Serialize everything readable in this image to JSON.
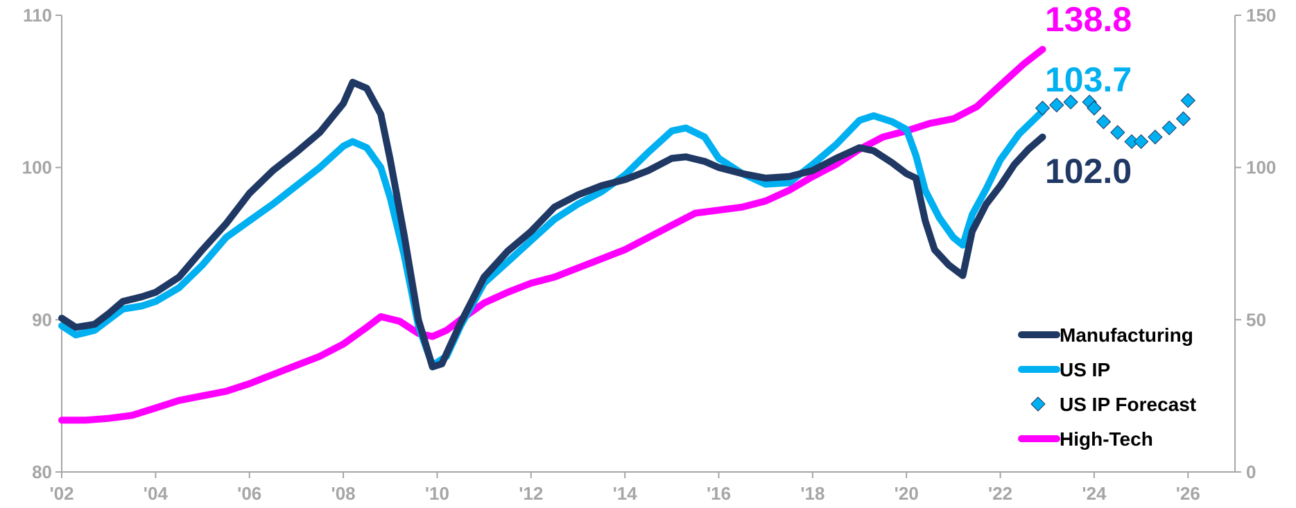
{
  "chart_data": {
    "type": "line",
    "title": "",
    "xlabel": "",
    "ylabel": "",
    "x_ticks": [
      "'02",
      "'04",
      "'06",
      "'08",
      "'10",
      "'12",
      "'14",
      "'16",
      "'18",
      "'20",
      "'22",
      "'24",
      "'26"
    ],
    "xlim": [
      2002,
      2027
    ],
    "left_axis": {
      "ylim": [
        80,
        110
      ],
      "ticks": [
        "80",
        "90",
        "100",
        "110"
      ]
    },
    "right_axis": {
      "ylim": [
        0,
        150
      ],
      "ticks": [
        "0",
        "50",
        "100",
        "150"
      ]
    },
    "grid": false,
    "legend_position": "bottom-right",
    "series": [
      {
        "name": "Manufacturing",
        "axis": "left",
        "style": "line",
        "color": "#1f3864",
        "end_label": "102.0",
        "points": [
          [
            2002.0,
            90.1
          ],
          [
            2002.3,
            89.5
          ],
          [
            2002.7,
            89.7
          ],
          [
            2003.0,
            90.4
          ],
          [
            2003.3,
            91.2
          ],
          [
            2003.7,
            91.5
          ],
          [
            2004.0,
            91.8
          ],
          [
            2004.5,
            92.8
          ],
          [
            2005.0,
            94.6
          ],
          [
            2005.5,
            96.3
          ],
          [
            2006.0,
            98.3
          ],
          [
            2006.5,
            99.8
          ],
          [
            2007.0,
            101.0
          ],
          [
            2007.5,
            102.3
          ],
          [
            2008.0,
            104.2
          ],
          [
            2008.2,
            105.6
          ],
          [
            2008.5,
            105.2
          ],
          [
            2008.8,
            103.5
          ],
          [
            2009.0,
            100.5
          ],
          [
            2009.3,
            95.5
          ],
          [
            2009.6,
            90.0
          ],
          [
            2009.9,
            86.9
          ],
          [
            2010.1,
            87.1
          ],
          [
            2010.5,
            89.8
          ],
          [
            2011.0,
            92.8
          ],
          [
            2011.5,
            94.5
          ],
          [
            2012.0,
            95.8
          ],
          [
            2012.5,
            97.4
          ],
          [
            2013.0,
            98.2
          ],
          [
            2013.5,
            98.8
          ],
          [
            2014.0,
            99.2
          ],
          [
            2014.5,
            99.8
          ],
          [
            2015.0,
            100.6
          ],
          [
            2015.3,
            100.7
          ],
          [
            2015.7,
            100.4
          ],
          [
            2016.0,
            100.0
          ],
          [
            2016.5,
            99.6
          ],
          [
            2017.0,
            99.3
          ],
          [
            2017.5,
            99.4
          ],
          [
            2018.0,
            99.8
          ],
          [
            2018.5,
            100.6
          ],
          [
            2019.0,
            101.3
          ],
          [
            2019.3,
            101.1
          ],
          [
            2019.7,
            100.3
          ],
          [
            2020.0,
            99.6
          ],
          [
            2020.2,
            99.3
          ],
          [
            2020.4,
            96.5
          ],
          [
            2020.6,
            94.6
          ],
          [
            2020.9,
            93.6
          ],
          [
            2021.2,
            92.9
          ],
          [
            2021.4,
            95.8
          ],
          [
            2021.7,
            97.6
          ],
          [
            2022.0,
            98.8
          ],
          [
            2022.3,
            100.2
          ],
          [
            2022.6,
            101.2
          ],
          [
            2022.9,
            102.0
          ]
        ]
      },
      {
        "name": "US IP",
        "axis": "left",
        "style": "line",
        "color": "#00b0f0",
        "end_label": "103.7",
        "points": [
          [
            2002.0,
            89.6
          ],
          [
            2002.3,
            89.0
          ],
          [
            2002.7,
            89.3
          ],
          [
            2003.0,
            90.0
          ],
          [
            2003.3,
            90.7
          ],
          [
            2003.7,
            90.9
          ],
          [
            2004.0,
            91.2
          ],
          [
            2004.5,
            92.1
          ],
          [
            2005.0,
            93.6
          ],
          [
            2005.5,
            95.4
          ],
          [
            2006.0,
            96.5
          ],
          [
            2006.5,
            97.6
          ],
          [
            2007.0,
            98.8
          ],
          [
            2007.5,
            100.0
          ],
          [
            2008.0,
            101.4
          ],
          [
            2008.2,
            101.7
          ],
          [
            2008.5,
            101.3
          ],
          [
            2008.8,
            100.0
          ],
          [
            2009.0,
            98.0
          ],
          [
            2009.3,
            94.2
          ],
          [
            2009.6,
            89.6
          ],
          [
            2009.9,
            87.0
          ],
          [
            2010.2,
            87.6
          ],
          [
            2010.5,
            89.6
          ],
          [
            2011.0,
            92.4
          ],
          [
            2011.5,
            93.8
          ],
          [
            2012.0,
            95.2
          ],
          [
            2012.5,
            96.6
          ],
          [
            2013.0,
            97.6
          ],
          [
            2013.5,
            98.4
          ],
          [
            2014.0,
            99.5
          ],
          [
            2014.5,
            101.0
          ],
          [
            2015.0,
            102.4
          ],
          [
            2015.3,
            102.6
          ],
          [
            2015.7,
            102.0
          ],
          [
            2016.0,
            100.6
          ],
          [
            2016.5,
            99.6
          ],
          [
            2017.0,
            98.9
          ],
          [
            2017.5,
            99.0
          ],
          [
            2018.0,
            100.2
          ],
          [
            2018.5,
            101.5
          ],
          [
            2019.0,
            103.1
          ],
          [
            2019.3,
            103.4
          ],
          [
            2019.7,
            103.0
          ],
          [
            2020.0,
            102.5
          ],
          [
            2020.2,
            100.8
          ],
          [
            2020.4,
            98.5
          ],
          [
            2020.7,
            96.7
          ],
          [
            2021.0,
            95.4
          ],
          [
            2021.2,
            94.9
          ],
          [
            2021.4,
            96.9
          ],
          [
            2021.7,
            98.6
          ],
          [
            2022.0,
            100.5
          ],
          [
            2022.4,
            102.2
          ],
          [
            2022.9,
            103.7
          ]
        ]
      },
      {
        "name": "US IP Forecast",
        "axis": "left",
        "style": "diamond-markers",
        "color": "#00b0f0",
        "points": [
          [
            2022.9,
            103.9
          ],
          [
            2023.2,
            104.1
          ],
          [
            2023.5,
            104.3
          ],
          [
            2023.9,
            104.3
          ],
          [
            2024.0,
            103.9
          ],
          [
            2024.2,
            103.0
          ],
          [
            2024.5,
            102.3
          ],
          [
            2024.8,
            101.7
          ],
          [
            2025.0,
            101.7
          ],
          [
            2025.3,
            102.0
          ],
          [
            2025.6,
            102.6
          ],
          [
            2025.9,
            103.2
          ],
          [
            2026.0,
            104.4
          ]
        ]
      },
      {
        "name": "High-Tech",
        "axis": "right",
        "style": "line",
        "color": "#ff00ff",
        "end_label": "138.8",
        "points": [
          [
            2002.0,
            17.0
          ],
          [
            2002.5,
            17.0
          ],
          [
            2003.0,
            17.6
          ],
          [
            2003.5,
            18.6
          ],
          [
            2004.0,
            21.0
          ],
          [
            2004.5,
            23.5
          ],
          [
            2005.0,
            25.0
          ],
          [
            2005.5,
            26.5
          ],
          [
            2006.0,
            29.0
          ],
          [
            2006.5,
            32.0
          ],
          [
            2007.0,
            35.0
          ],
          [
            2007.5,
            38.0
          ],
          [
            2008.0,
            42.0
          ],
          [
            2008.5,
            47.5
          ],
          [
            2008.8,
            51.0
          ],
          [
            2009.2,
            49.5
          ],
          [
            2009.6,
            45.5
          ],
          [
            2009.9,
            44.5
          ],
          [
            2010.2,
            46.5
          ],
          [
            2010.5,
            50.0
          ],
          [
            2011.0,
            55.5
          ],
          [
            2011.5,
            59.0
          ],
          [
            2012.0,
            62.0
          ],
          [
            2012.5,
            64.0
          ],
          [
            2013.0,
            67.0
          ],
          [
            2013.5,
            70.0
          ],
          [
            2014.0,
            73.0
          ],
          [
            2014.5,
            77.0
          ],
          [
            2015.0,
            81.0
          ],
          [
            2015.5,
            85.0
          ],
          [
            2016.0,
            86.0
          ],
          [
            2016.5,
            87.0
          ],
          [
            2017.0,
            89.0
          ],
          [
            2017.5,
            92.5
          ],
          [
            2018.0,
            97.0
          ],
          [
            2018.5,
            101.0
          ],
          [
            2019.0,
            106.0
          ],
          [
            2019.5,
            110.0
          ],
          [
            2020.0,
            112.0
          ],
          [
            2020.5,
            114.5
          ],
          [
            2021.0,
            116.0
          ],
          [
            2021.5,
            120.0
          ],
          [
            2022.0,
            127.0
          ],
          [
            2022.5,
            134.0
          ],
          [
            2022.9,
            138.8
          ]
        ]
      }
    ]
  },
  "colors": {
    "manufacturing": "#1f3864",
    "us_ip": "#00b0f0",
    "high_tech": "#ff00ff",
    "axis": "#a6a6a6"
  }
}
